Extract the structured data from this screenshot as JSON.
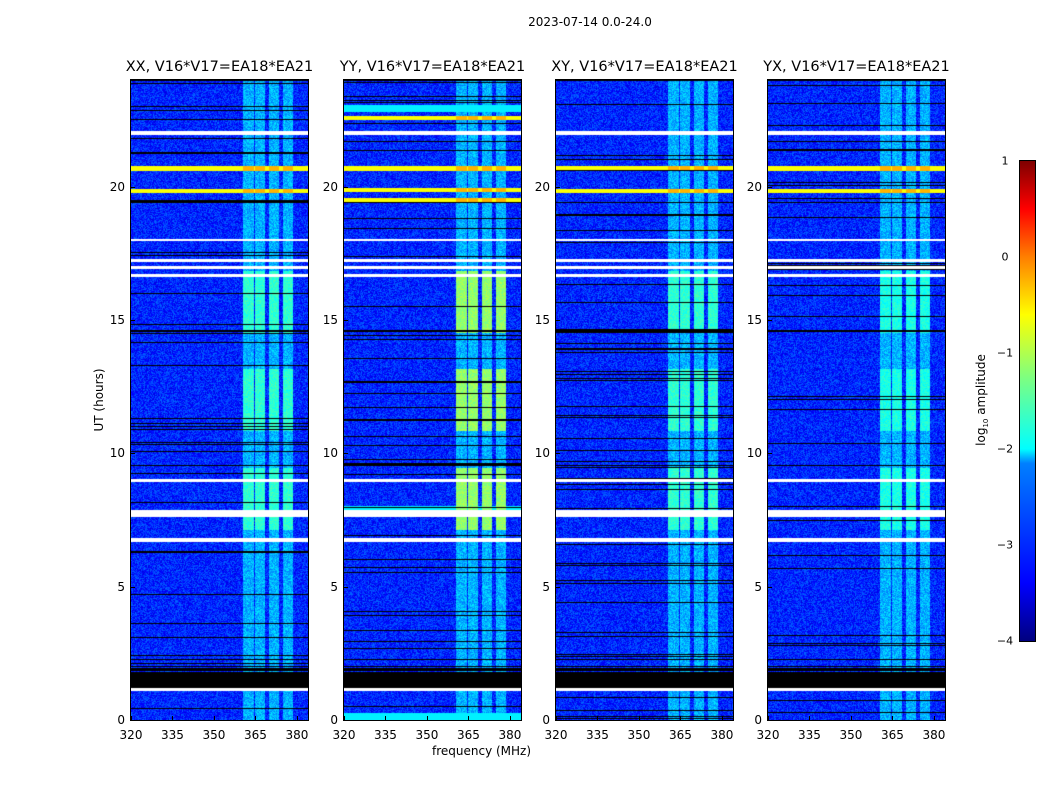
{
  "suptitle": "2023-07-14 0.0-24.0",
  "chart_data": {
    "type": "heatmap",
    "title": "2023-07-14 0.0-24.0",
    "xlabel": "frequency (MHz)",
    "ylabel": "UT (hours)",
    "xlim": [
      320,
      384
    ],
    "ylim": [
      0,
      24
    ],
    "xticks": [
      "320",
      "335",
      "350",
      "365",
      "380"
    ],
    "xtick_values": [
      320,
      335,
      350,
      365,
      380
    ],
    "yticks": [
      "0",
      "5",
      "10",
      "15",
      "20"
    ],
    "ytick_values": [
      0,
      5,
      10,
      15,
      20
    ],
    "colorbar": {
      "label": "log10 amplitude",
      "label_main": "log",
      "label_sub": "10",
      "label_rest": " amplitude",
      "range": [
        -4,
        1
      ],
      "ticks": [
        "1",
        "0",
        "−1",
        "−2",
        "−3",
        "−4"
      ],
      "tick_values": [
        1,
        0,
        -1,
        -2,
        -3,
        -4
      ],
      "colormap": "jet"
    },
    "background_log_amplitude": -3.2,
    "rfi_bands_mhz": [
      [
        360.4,
        364.7
      ],
      [
        364.5,
        368.8
      ],
      [
        369.7,
        374
      ],
      [
        374.7,
        379
      ]
    ],
    "no_data_hours": [
      [
        1.1,
        1.2
      ],
      [
        6.7,
        6.85
      ],
      [
        7.65,
        7.9
      ],
      [
        8.95,
        9.05
      ],
      [
        16.65,
        16.75
      ],
      [
        16.95,
        17.05
      ],
      [
        17.2,
        17.3
      ],
      [
        18.0,
        18.05
      ],
      [
        21.95,
        22.1
      ]
    ],
    "flagged_hours": [
      [
        1.2,
        1.8
      ],
      [
        1.85,
        1.95
      ],
      [
        2.0,
        2.05
      ]
    ],
    "panels": [
      {
        "name": "XX",
        "title": "XX, V16*V17=EA18*EA21",
        "rfi_level": -1.9,
        "strong_hours": [
          19.85,
          20.7
        ]
      },
      {
        "name": "YY",
        "title": "YY, V16*V17=EA18*EA21",
        "rfi_level": -1.4,
        "strong_hours": [
          19.5,
          19.9,
          20.7,
          22.6
        ]
      },
      {
        "name": "XY",
        "title": "XY, V16*V17=EA18*EA21",
        "rfi_level": -1.9,
        "strong_hours": [
          19.85,
          20.7
        ]
      },
      {
        "name": "YX",
        "title": "YX, V16*V17=EA18*EA21",
        "rfi_level": -2.0,
        "strong_hours": [
          19.85,
          20.7
        ]
      }
    ]
  }
}
